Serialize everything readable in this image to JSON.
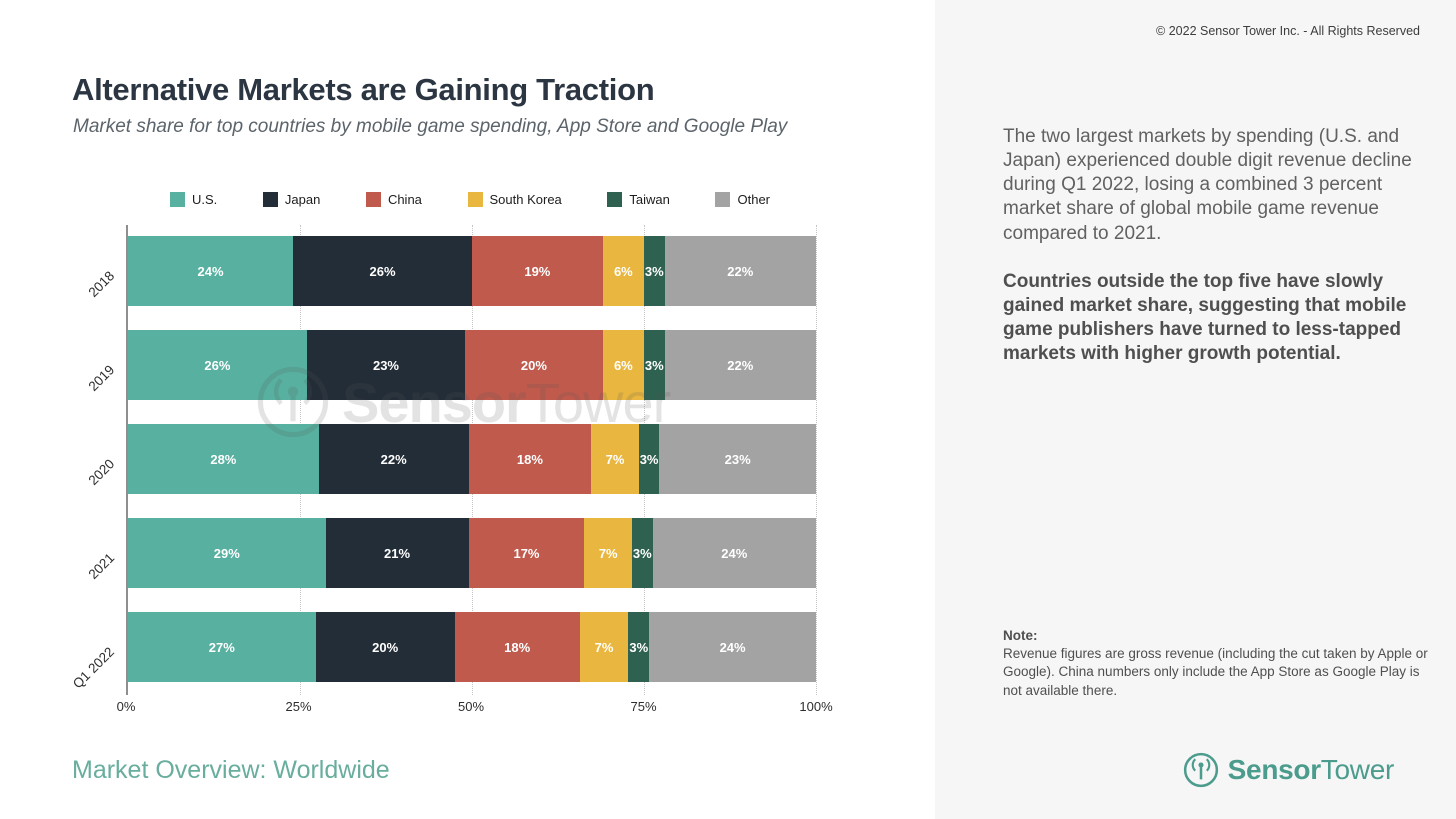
{
  "header": {
    "title": "Alternative Markets are Gaining Traction",
    "subtitle": "Market share for top countries by mobile game spending, App Store and Google Play"
  },
  "chart_data": {
    "type": "bar",
    "orientation": "horizontal-stacked",
    "title": "Market share for top countries by mobile game spending, App Store and Google Play",
    "categories": [
      "2018",
      "2019",
      "2020",
      "2021",
      "Q1 2022"
    ],
    "series": [
      {
        "name": "U.S.",
        "color": "#58b0a0",
        "values": [
          24,
          26,
          28,
          29,
          27
        ]
      },
      {
        "name": "Japan",
        "color": "#232d38",
        "values": [
          26,
          23,
          22,
          21,
          20
        ]
      },
      {
        "name": "China",
        "color": "#c05a4d",
        "values": [
          19,
          20,
          18,
          17,
          18
        ]
      },
      {
        "name": "South Korea",
        "color": "#e9b63f",
        "values": [
          6,
          6,
          7,
          7,
          7
        ]
      },
      {
        "name": "Taiwan",
        "color": "#2e6150",
        "values": [
          3,
          3,
          3,
          3,
          3
        ]
      },
      {
        "name": "Other",
        "color": "#a3a3a3",
        "values": [
          22,
          22,
          23,
          24,
          24
        ]
      }
    ],
    "value_suffix": "%",
    "xlim": [
      0,
      100
    ],
    "x_ticks": [
      {
        "label": "0%",
        "pos": 0
      },
      {
        "label": "25%",
        "pos": 25
      },
      {
        "label": "50%",
        "pos": 50
      },
      {
        "label": "75%",
        "pos": 75
      },
      {
        "label": "100%",
        "pos": 100
      }
    ],
    "grid": "vertical-dotted",
    "legend_position": "top",
    "watermark": {
      "bold": "Sensor",
      "regular": "Tower"
    }
  },
  "right_panel": {
    "copyright": "© 2022 Sensor Tower Inc. - All Rights Reserved",
    "paragraph1": "The two largest markets by spending (U.S. and Japan) experienced double digit revenue decline during Q1 2022, losing a combined 3 percent market share of global mobile game revenue compared to 2021.",
    "paragraph2": "Countries outside the top five have slowly gained market share, suggesting that mobile game publishers have turned to less-tapped markets with higher growth potential.",
    "note_label": "Note:",
    "note_body": "Revenue figures are gross revenue (including the cut taken by Apple or Google). China numbers only include the App Store as Google Play is not available there."
  },
  "footer": {
    "label": "Market Overview: Worldwide"
  },
  "logo": {
    "bold": "Sensor",
    "regular": "Tower"
  },
  "colors": {
    "accent_teal": "#4c9c8d",
    "footer_teal": "#68ad9d",
    "panel_bg": "#f6f6f6"
  }
}
